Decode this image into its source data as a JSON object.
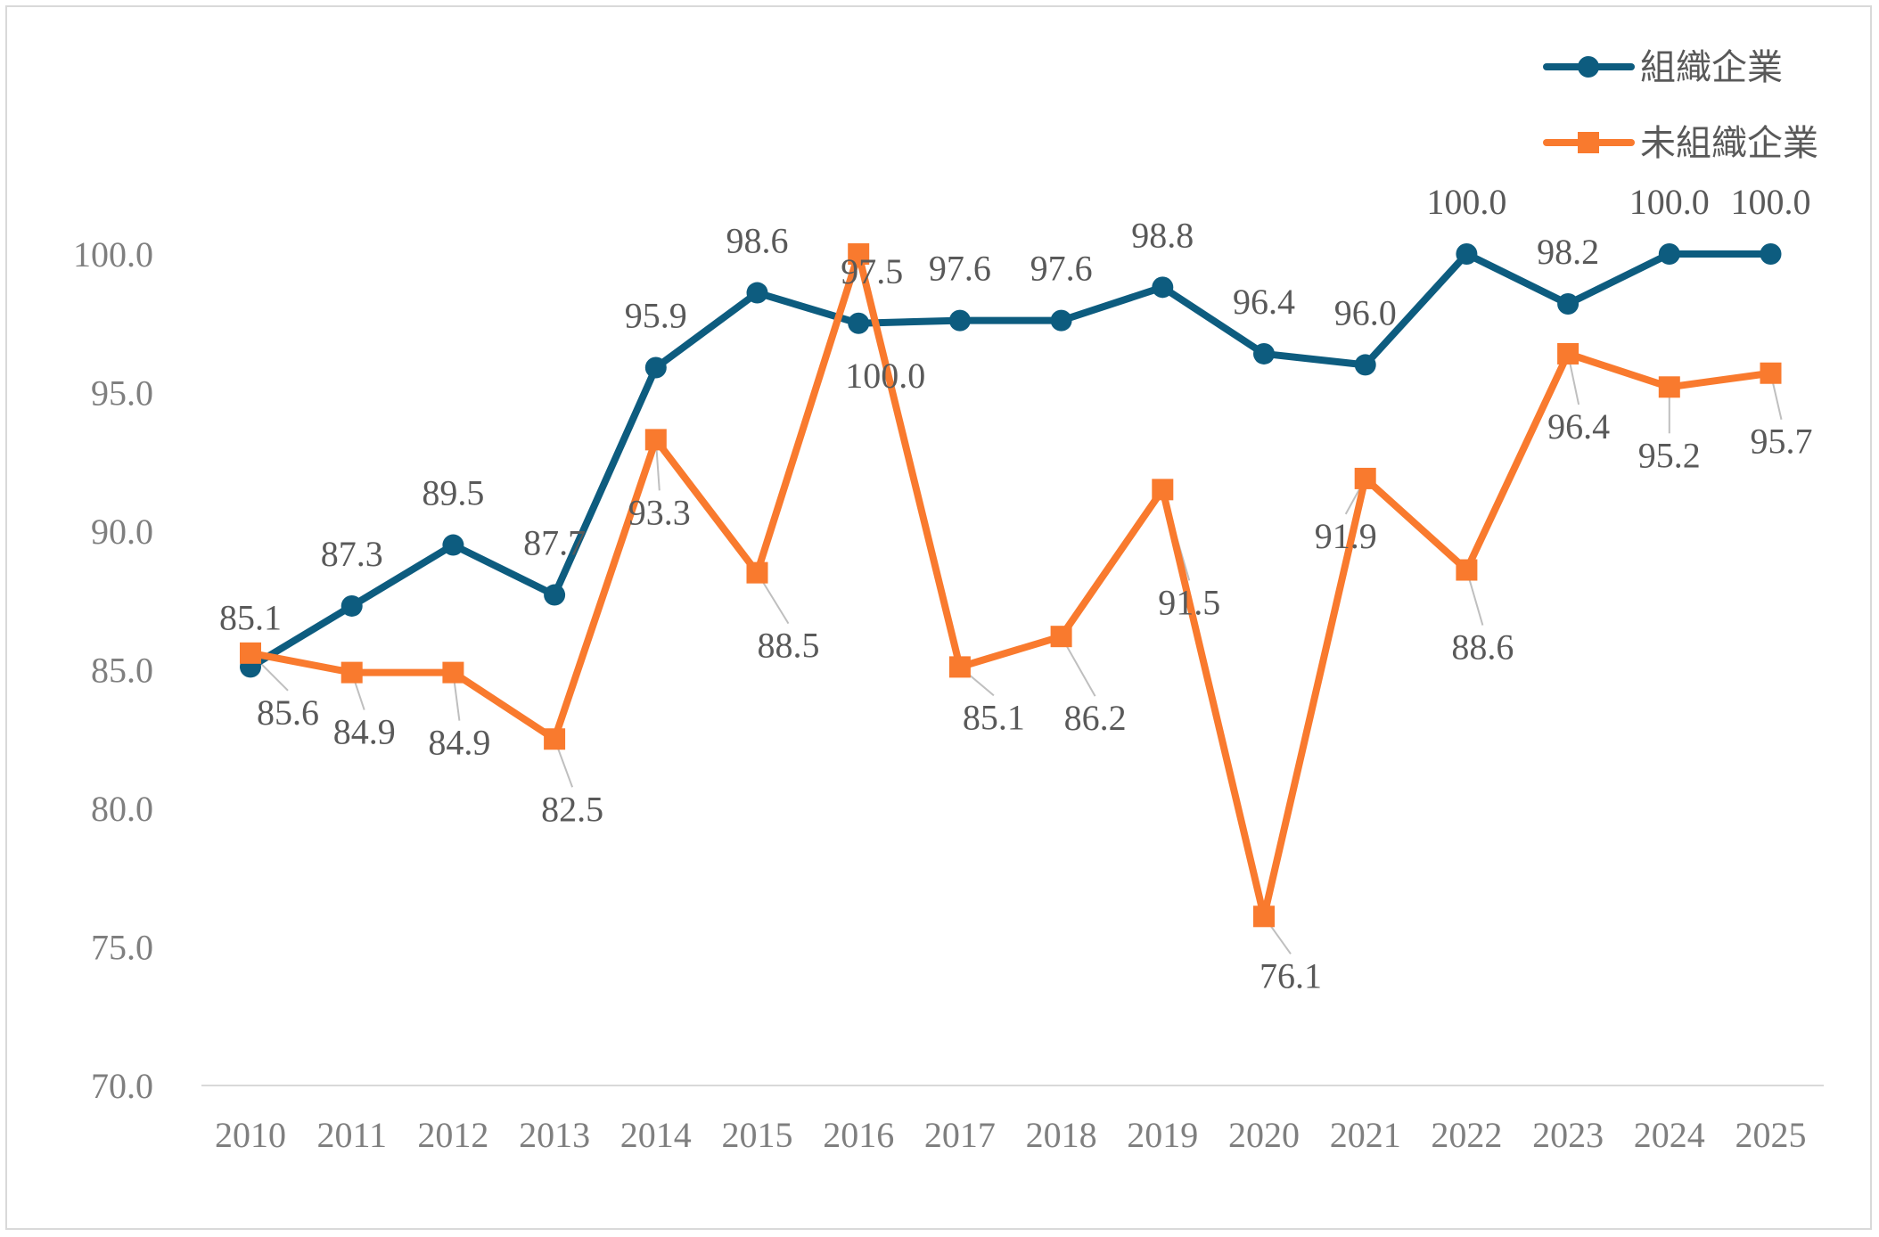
{
  "chart_data": {
    "type": "line",
    "title": "",
    "xlabel": "",
    "ylabel": "",
    "categories": [
      "2010",
      "2011",
      "2012",
      "2013",
      "2014",
      "2015",
      "2016",
      "2017",
      "2018",
      "2019",
      "2020",
      "2021",
      "2022",
      "2023",
      "2024",
      "2025"
    ],
    "ylim": [
      70.0,
      100.0
    ],
    "yticks": [
      "70.0",
      "75.0",
      "80.0",
      "85.0",
      "90.0",
      "95.0",
      "100.0"
    ],
    "grid": false,
    "legend_position": "top-right",
    "series": [
      {
        "name": "組織企業",
        "color": "#0d5c7f",
        "marker": "circle",
        "values": [
          85.1,
          87.3,
          89.5,
          87.7,
          95.9,
          98.6,
          97.5,
          97.6,
          97.6,
          98.8,
          96.4,
          96.0,
          100.0,
          98.2,
          100.0,
          100.0
        ],
        "labels": [
          "85.1",
          "87.3",
          "89.5",
          "87.7",
          "95.9",
          "98.6",
          "97.5",
          "97.6",
          "97.6",
          "98.8",
          "96.4",
          "96.0",
          "100.0",
          "98.2",
          "100.0",
          "100.0"
        ]
      },
      {
        "name": "未組織企業",
        "color": "#f97a2e",
        "marker": "square",
        "values": [
          85.6,
          84.9,
          84.9,
          82.5,
          93.3,
          88.5,
          100.0,
          85.1,
          86.2,
          91.5,
          76.1,
          91.9,
          88.6,
          96.4,
          95.2,
          95.7
        ],
        "labels": [
          "85.6",
          "84.9",
          "84.9",
          "82.5",
          "93.3",
          "88.5",
          "100.0",
          "85.1",
          "86.2",
          "91.5",
          "76.1",
          "91.9",
          "88.6",
          "96.4",
          "95.2",
          "95.7"
        ]
      }
    ]
  }
}
